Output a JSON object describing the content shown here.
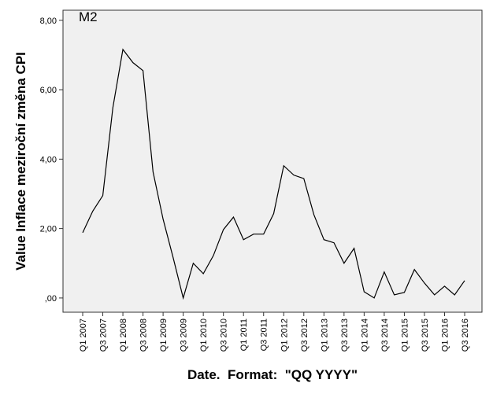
{
  "chart_data": {
    "type": "line",
    "annotation": "M2",
    "y_label": "Value Inflace meziroční změna CPI",
    "x_label": "Date.  Format:  \"QQ YYYY\"",
    "categories": [
      "Q1 2007",
      null,
      "Q3 2007",
      null,
      "Q1 2008",
      null,
      "Q3 2008",
      null,
      "Q1 2009",
      null,
      "Q3 2009",
      null,
      "Q1 2010",
      null,
      "Q3 2010",
      null,
      "Q1 2011",
      null,
      "Q3 2011",
      null,
      "Q1 2012",
      null,
      "Q3 2012",
      null,
      "Q1 2013",
      null,
      "Q3 2013",
      null,
      "Q1 2014",
      null,
      "Q3 2014",
      null,
      "Q1 2015",
      null,
      "Q3 2015",
      null,
      "Q1 2016",
      null,
      "Q3 2016"
    ],
    "series": [
      {
        "name": "Value Inflace meziroční změna CPI",
        "color": "#000000",
        "values": [
          1.88,
          2.5,
          2.95,
          5.48,
          7.16,
          6.78,
          6.55,
          3.63,
          2.27,
          1.16,
          0.0,
          1.0,
          0.7,
          1.22,
          1.97,
          2.33,
          1.68,
          1.84,
          1.84,
          2.43,
          3.81,
          3.54,
          3.44,
          2.4,
          1.68,
          1.59,
          1.0,
          1.43,
          0.18,
          0.0,
          0.75,
          0.09,
          0.16,
          0.82,
          0.43,
          0.09,
          0.34,
          0.09,
          0.5
        ]
      }
    ],
    "ylim": [
      -0.41,
      8.29
    ],
    "yticks": [
      {
        "value": 0,
        "label": ",00"
      },
      {
        "value": 2,
        "label": "2,00"
      },
      {
        "value": 4,
        "label": "4,00"
      },
      {
        "value": 6,
        "label": "6,00"
      },
      {
        "value": 8,
        "label": "8,00"
      }
    ],
    "grid": false,
    "background": "#f0f0f0"
  }
}
